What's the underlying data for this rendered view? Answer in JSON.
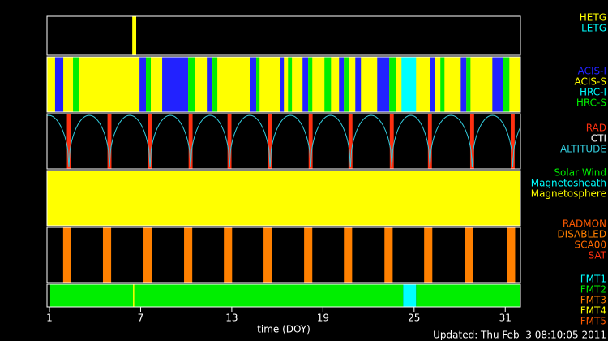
{
  "chart_data": {
    "type": "timeline",
    "year_label": "2011",
    "x_label": "time (DOY)",
    "updated": "Updated: Thu Feb  3 08:10:05 2011",
    "xlim": [
      0.84,
      32
    ],
    "xticks": [
      1,
      7,
      13,
      19,
      25,
      31
    ],
    "rows": [
      {
        "series": [
          {
            "name": "HETG",
            "color": "#ffff00",
            "intervals": [
              [
                6.45,
                6.71
              ]
            ]
          },
          {
            "name": "LETG",
            "color": "#00ffff",
            "intervals": []
          }
        ]
      },
      {
        "series": [
          {
            "name": "ACIS-I",
            "color": "#2222ff",
            "intervals": [
              [
                1.37,
                1.91
              ],
              [
                6.93,
                7.35
              ],
              [
                8.42,
                10.13
              ],
              [
                11.36,
                11.73
              ],
              [
                14.19,
                14.61
              ],
              [
                16.16,
                16.43
              ],
              [
                17.66,
                18.03
              ],
              [
                20.06,
                20.38
              ],
              [
                21.13,
                21.5
              ],
              [
                22.57,
                23.37
              ],
              [
                26.04,
                26.36
              ],
              [
                28.07,
                28.44
              ],
              [
                30.15,
                30.84
              ]
            ]
          },
          {
            "name": "ACIS-S",
            "color": "#ffff00",
            "intervals": [
              [
                0.84,
                32
              ]
            ]
          },
          {
            "name": "HRC-I",
            "color": "#00ffff",
            "intervals": [
              [
                24.17,
                25.13
              ]
            ]
          },
          {
            "name": "HRC-S",
            "color": "#00ee00",
            "intervals": [
              [
                2.55,
                2.92
              ],
              [
                7.35,
                7.67
              ],
              [
                10.13,
                10.56
              ],
              [
                11.73,
                12.05
              ],
              [
                14.61,
                14.83
              ],
              [
                16.7,
                16.96
              ],
              [
                18.03,
                18.3
              ],
              [
                19.1,
                19.53
              ],
              [
                20.38,
                20.7
              ],
              [
                23.37,
                23.8
              ],
              [
                26.73,
                27.0
              ],
              [
                28.44,
                28.71
              ],
              [
                30.84,
                31.27
              ]
            ]
          }
        ]
      },
      {
        "series": [
          {
            "name": "RAD",
            "color": "#ff3010",
            "intervals": [
              [
                2.15,
                2.41
              ],
              [
                4.82,
                5.08
              ],
              [
                7.49,
                7.75
              ],
              [
                10.16,
                10.42
              ],
              [
                12.72,
                12.98
              ],
              [
                15.39,
                15.65
              ],
              [
                18.06,
                18.32
              ],
              [
                20.68,
                20.94
              ],
              [
                23.4,
                23.66
              ],
              [
                25.91,
                26.17
              ],
              [
                28.69,
                28.95
              ],
              [
                31.36,
                31.62
              ]
            ]
          },
          {
            "name": "CTI",
            "color": "#ffffff",
            "intervals": []
          },
          {
            "name": "ALTITUDE",
            "color": "#33ccdd",
            "perigees": [
              2.28,
              4.95,
              7.62,
              10.29,
              12.85,
              15.52,
              18.19,
              20.81,
              23.53,
              26.04,
              28.82,
              31.49
            ]
          }
        ]
      },
      {
        "series": [
          {
            "name": "Solar Wind",
            "color": "#00ee00",
            "intervals": []
          },
          {
            "name": "Magnetosheath",
            "color": "#00ffff",
            "intervals": []
          },
          {
            "name": "Magnetosphere",
            "color": "#ffff00",
            "intervals": [
              [
                0.84,
                32
              ]
            ]
          }
        ]
      },
      {
        "series": [
          {
            "name": "RADMON",
            "color": "#ff5a00",
            "intervals": []
          },
          {
            "name": "DISABLED",
            "color": "#ff8000",
            "intervals": [
              [
                1.9,
                2.44
              ],
              [
                4.52,
                5.06
              ],
              [
                7.19,
                7.73
              ],
              [
                9.86,
                10.4
              ],
              [
                12.48,
                13.02
              ],
              [
                15.09,
                15.63
              ],
              [
                17.76,
                18.3
              ],
              [
                20.38,
                20.92
              ],
              [
                23.05,
                23.59
              ],
              [
                25.66,
                26.2
              ],
              [
                28.33,
                28.87
              ],
              [
                31.11,
                31.65
              ]
            ]
          },
          {
            "name": "SCA00",
            "color": "#ff6a00",
            "intervals": []
          },
          {
            "name": "SAT",
            "color": "#ff3010",
            "intervals": []
          }
        ]
      },
      {
        "series": [
          {
            "name": "FMT1",
            "color": "#00ffff",
            "intervals": [
              [
                24.28,
                25.13
              ]
            ]
          },
          {
            "name": "FMT2",
            "color": "#00ee00",
            "intervals": [
              [
                1.05,
                24.28
              ],
              [
                25.13,
                32
              ]
            ]
          },
          {
            "name": "FMT3",
            "color": "#ff8000",
            "intervals": []
          },
          {
            "name": "FMT4",
            "color": "#ffff00",
            "intervals": [
              [
                6.5,
                6.58
              ]
            ]
          },
          {
            "name": "FMT5",
            "color": "#ff5a00",
            "intervals": []
          }
        ]
      }
    ]
  }
}
